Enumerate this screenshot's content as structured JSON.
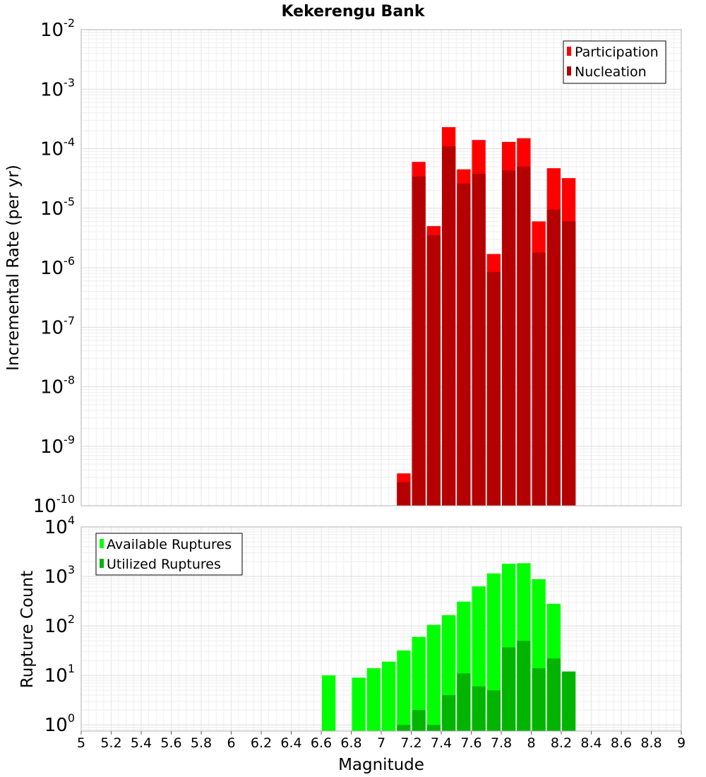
{
  "chart_data": {
    "title": "Kekerengu Bank",
    "xlabel": "Magnitude",
    "xlim": [
      5,
      9
    ],
    "x_ticks": [
      "5",
      "5.2",
      "5.4",
      "5.6",
      "5.8",
      "6",
      "6.2",
      "6.4",
      "6.6",
      "6.8",
      "7",
      "7.2",
      "7.4",
      "7.6",
      "7.8",
      "8",
      "8.2",
      "8.4",
      "8.6",
      "8.8",
      "9"
    ],
    "bin_width": 0.1,
    "top": {
      "type": "bar",
      "ylabel": "Incremental Rate (per yr)",
      "yscale": "log",
      "ylim": [
        1e-10,
        0.01
      ],
      "y_ticks": [
        {
          "base": "10",
          "exp": "-10"
        },
        {
          "base": "10",
          "exp": "-9"
        },
        {
          "base": "10",
          "exp": "-8"
        },
        {
          "base": "10",
          "exp": "-7"
        },
        {
          "base": "10",
          "exp": "-6"
        },
        {
          "base": "10",
          "exp": "-5"
        },
        {
          "base": "10",
          "exp": "-4"
        },
        {
          "base": "10",
          "exp": "-3"
        },
        {
          "base": "10",
          "exp": "-2"
        }
      ],
      "legend_position": "top-right",
      "x": [
        7.15,
        7.25,
        7.35,
        7.45,
        7.55,
        7.65,
        7.75,
        7.85,
        7.95,
        8.05,
        8.15,
        8.25
      ],
      "series": [
        {
          "name": "Participation",
          "color": "#ff0000",
          "values": [
            3.5e-10,
            6e-05,
            5e-06,
            0.00023,
            4.5e-05,
            0.00014,
            1.7e-06,
            0.00013,
            0.00015,
            6e-06,
            4.7e-05,
            3.2e-05
          ]
        },
        {
          "name": "Nucleation",
          "color": "#b40000",
          "values": [
            2.5e-10,
            3.4e-05,
            3.5e-06,
            0.00011,
            2.6e-05,
            3.8e-05,
            8.5e-07,
            4.3e-05,
            5e-05,
            1.8e-06,
            9.5e-06,
            6e-06
          ]
        }
      ]
    },
    "bottom": {
      "type": "bar",
      "ylabel": "Rupture Count",
      "yscale": "log",
      "ylim": [
        0.75,
        10000
      ],
      "y_ticks": [
        {
          "base": "10",
          "exp": "0",
          "value": 1
        },
        {
          "base": "10",
          "exp": "1",
          "value": 10
        },
        {
          "base": "10",
          "exp": "2",
          "value": 100
        },
        {
          "base": "10",
          "exp": "3",
          "value": 1000
        },
        {
          "base": "10",
          "exp": "4",
          "value": 10000
        }
      ],
      "legend_position": "top-left",
      "series": [
        {
          "name": "Available Ruptures",
          "color": "#00ff00",
          "x": [
            6.65,
            6.85,
            6.95,
            7.05,
            7.15,
            7.25,
            7.35,
            7.45,
            7.55,
            7.65,
            7.75,
            7.85,
            7.95,
            8.05,
            8.15
          ],
          "values": [
            10,
            9,
            14,
            19,
            32,
            60,
            105,
            165,
            310,
            630,
            1150,
            1800,
            1850,
            880,
            280
          ]
        },
        {
          "name": "Utilized Ruptures",
          "color": "#00b400",
          "x": [
            7.15,
            7.25,
            7.35,
            7.45,
            7.55,
            7.65,
            7.75,
            7.85,
            7.95,
            8.05,
            8.15,
            8.25
          ],
          "values": [
            1,
            2,
            1,
            4,
            11,
            6,
            5,
            37,
            50,
            14,
            22,
            12
          ]
        }
      ]
    }
  }
}
